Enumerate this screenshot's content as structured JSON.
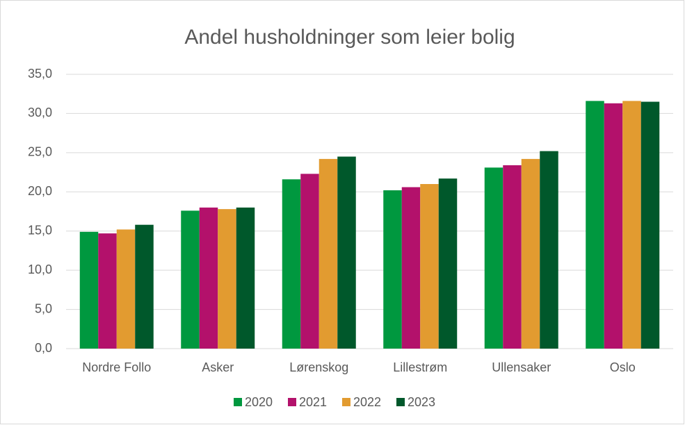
{
  "chart_data": {
    "type": "bar",
    "title": "Andel husholdninger som leier bolig",
    "categories": [
      "Nordre Follo",
      "Asker",
      "Lørenskog",
      "Lillestrøm",
      "Ullensaker",
      "Oslo"
    ],
    "series": [
      {
        "name": "2020",
        "color": "#00983f",
        "values": [
          14.9,
          17.6,
          21.6,
          20.2,
          23.1,
          31.6
        ]
      },
      {
        "name": "2021",
        "color": "#b3116b",
        "values": [
          14.7,
          18.0,
          22.3,
          20.6,
          23.4,
          31.3
        ]
      },
      {
        "name": "2022",
        "color": "#e29b30",
        "values": [
          15.2,
          17.8,
          24.2,
          21.0,
          24.2,
          31.6
        ]
      },
      {
        "name": "2023",
        "color": "#00582b",
        "values": [
          15.8,
          18.0,
          24.5,
          21.7,
          25.2,
          31.5
        ]
      }
    ],
    "ylim": [
      0,
      35
    ],
    "yticks": [
      {
        "value": 0,
        "label": "0,0"
      },
      {
        "value": 5,
        "label": "5,0"
      },
      {
        "value": 10,
        "label": "10,0"
      },
      {
        "value": 15,
        "label": "15,0"
      },
      {
        "value": 20,
        "label": "20,0"
      },
      {
        "value": 25,
        "label": "25,0"
      },
      {
        "value": 30,
        "label": "30,0"
      },
      {
        "value": 35,
        "label": "35,0"
      }
    ],
    "grid": true,
    "legend": "bottom"
  }
}
